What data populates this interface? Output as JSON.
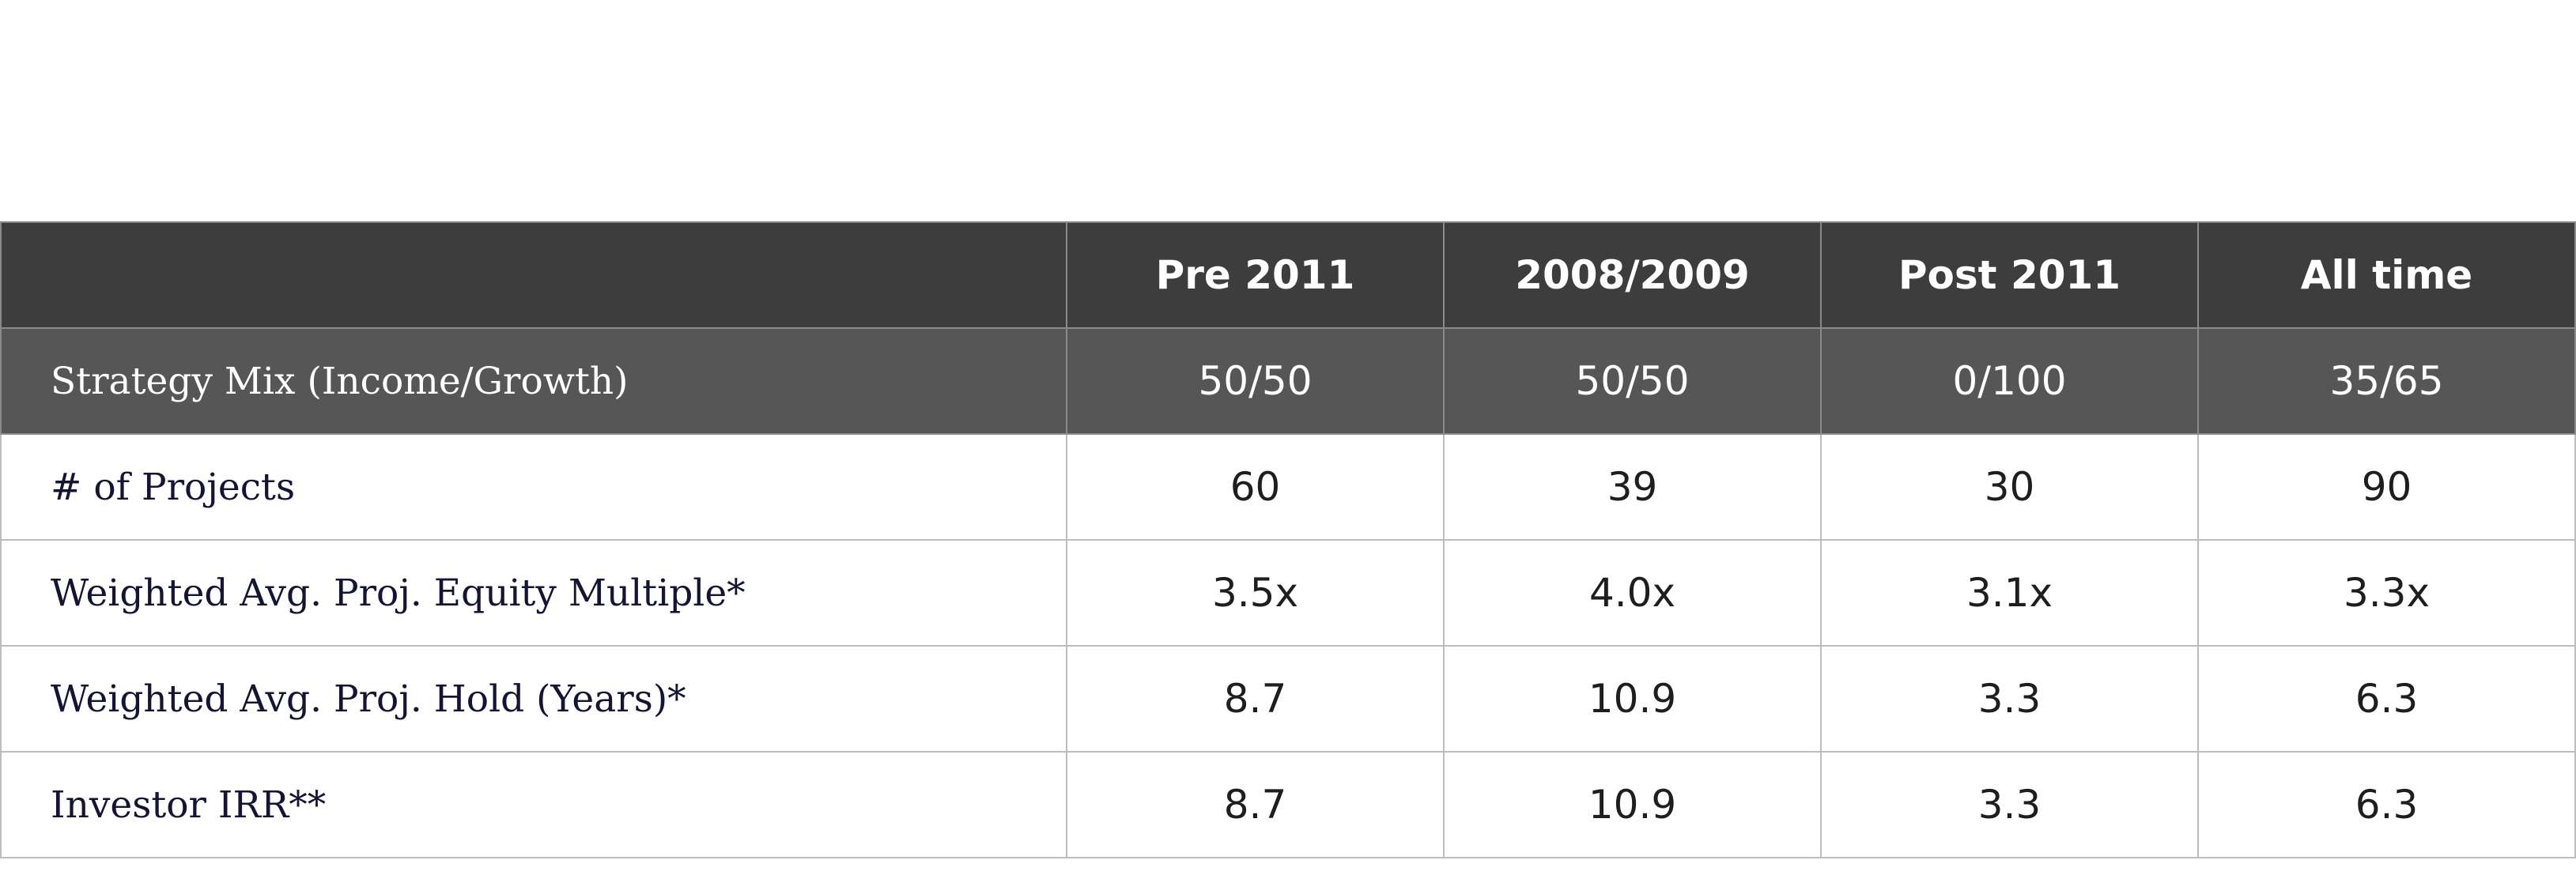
{
  "table": {
    "columns": [
      "",
      "Pre 2011",
      "2008/2009",
      "Post 2011",
      "All time"
    ],
    "rows": [
      {
        "label": "Strategy Mix (Income/Growth)",
        "values": [
          "50/50",
          "50/50",
          "0/100",
          "35/65"
        ]
      },
      {
        "label": "# of Projects",
        "values": [
          "60",
          "39",
          "30",
          "90"
        ]
      },
      {
        "label": "Weighted Avg. Proj. Equity Multiple*",
        "values": [
          "3.5x",
          "4.0x",
          "3.1x",
          "3.3x"
        ]
      },
      {
        "label": "Weighted Avg. Proj. Hold (Years)*",
        "values": [
          "8.7",
          "10.9",
          "3.3",
          "6.3"
        ]
      },
      {
        "label": "Investor IRR**",
        "values": [
          "8.7",
          "10.9",
          "3.3",
          "6.3"
        ]
      }
    ]
  },
  "colors": {
    "header_bg": "#3d3d3d",
    "mix_row_bg": "#565656",
    "label_text": "#141433",
    "grid": "#bdbdbd"
  }
}
